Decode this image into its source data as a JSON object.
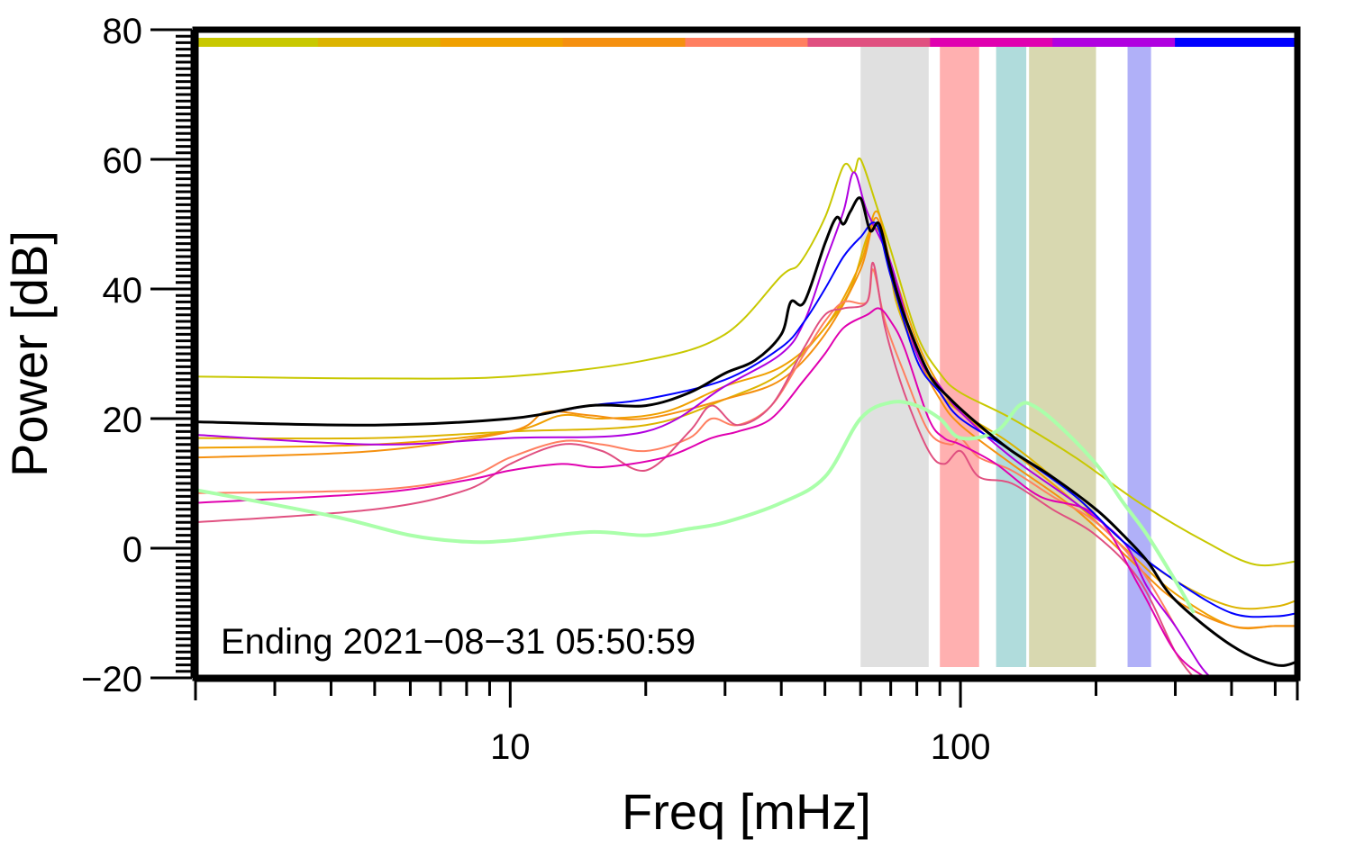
{
  "chart_data": {
    "type": "line",
    "title": "",
    "xlabel": "Freq [mHz]",
    "ylabel": "Power [dB]",
    "xscale": "log",
    "xlim": [
      2,
      560
    ],
    "ylim": [
      -20,
      80
    ],
    "grid": false,
    "x_major_ticks": [
      10,
      100
    ],
    "x_tick_labels": [
      "10",
      "100"
    ],
    "x_minor_ticks": [
      2,
      3,
      4,
      5,
      6,
      7,
      8,
      9,
      20,
      30,
      40,
      50,
      60,
      70,
      80,
      90,
      200,
      300,
      400,
      500
    ],
    "y_ticks": [
      -20,
      0,
      20,
      40,
      60,
      80
    ],
    "y_tick_labels": [
      "−20",
      "0",
      "20",
      "40",
      "60",
      "80"
    ],
    "annotation": "Ending 2021−08−31 05:50:59",
    "top_color_bar": [
      "#c8c800",
      "#dcb400",
      "#f0a000",
      "#f5900f",
      "#ff7f60",
      "#e05080",
      "#e000b0",
      "#b000e0",
      "#0000ff"
    ],
    "bands": [
      {
        "x0": 60,
        "x1": 85,
        "color": "#e0e0e0"
      },
      {
        "x0": 90,
        "x1": 110,
        "color": "#ffb0b0"
      },
      {
        "x0": 120,
        "x1": 140,
        "color": "#b0dcdc"
      },
      {
        "x0": 142,
        "x1": 200,
        "color": "#d8d8b0"
      },
      {
        "x0": 235,
        "x1": 265,
        "color": "#b0b0f8"
      }
    ],
    "series": [
      {
        "color": "#c8c800",
        "width": 2,
        "points": [
          [
            2,
            26.5
          ],
          [
            5,
            26.2
          ],
          [
            10,
            26.5
          ],
          [
            20,
            29
          ],
          [
            30,
            33
          ],
          [
            40,
            42
          ],
          [
            44,
            44
          ],
          [
            50,
            51
          ],
          [
            55,
            59
          ],
          [
            58,
            58
          ],
          [
            60,
            60
          ],
          [
            65,
            53
          ],
          [
            70,
            46
          ],
          [
            80,
            33
          ],
          [
            90,
            27
          ],
          [
            100,
            24
          ],
          [
            130,
            20
          ],
          [
            180,
            14
          ],
          [
            250,
            7
          ],
          [
            350,
            1
          ],
          [
            450,
            -2.5
          ],
          [
            560,
            -2
          ]
        ]
      },
      {
        "color": "#dcb400",
        "width": 2,
        "points": [
          [
            2,
            17
          ],
          [
            5,
            17
          ],
          [
            10,
            18
          ],
          [
            20,
            19
          ],
          [
            30,
            23
          ],
          [
            40,
            27
          ],
          [
            50,
            34
          ],
          [
            57,
            40
          ],
          [
            63,
            49
          ],
          [
            68,
            47
          ],
          [
            72,
            38
          ],
          [
            80,
            30
          ],
          [
            90,
            24
          ],
          [
            100,
            21
          ],
          [
            130,
            16
          ],
          [
            180,
            8
          ],
          [
            230,
            1
          ],
          [
            300,
            -5
          ],
          [
            400,
            -9
          ],
          [
            500,
            -9
          ],
          [
            560,
            -8
          ]
        ]
      },
      {
        "color": "#f0a000",
        "width": 2,
        "points": [
          [
            2,
            15.5
          ],
          [
            5,
            16
          ],
          [
            10,
            18
          ],
          [
            13,
            20.5
          ],
          [
            16,
            20
          ],
          [
            22,
            21
          ],
          [
            30,
            25
          ],
          [
            40,
            28
          ],
          [
            50,
            34
          ],
          [
            60,
            44
          ],
          [
            65,
            52
          ],
          [
            70,
            44
          ],
          [
            80,
            32
          ],
          [
            90,
            25
          ],
          [
            100,
            21
          ],
          [
            130,
            15
          ],
          [
            180,
            7
          ],
          [
            240,
            -1
          ],
          [
            300,
            -7
          ],
          [
            400,
            -12
          ],
          [
            500,
            -12
          ],
          [
            560,
            -12
          ]
        ]
      },
      {
        "color": "#f5900f",
        "width": 2,
        "points": [
          [
            2,
            14
          ],
          [
            5,
            15
          ],
          [
            10,
            18
          ],
          [
            12,
            21
          ],
          [
            15,
            20.5
          ],
          [
            20,
            20
          ],
          [
            30,
            23
          ],
          [
            40,
            26
          ],
          [
            50,
            33
          ],
          [
            60,
            43
          ],
          [
            65,
            51
          ],
          [
            70,
            42
          ],
          [
            80,
            30
          ],
          [
            90,
            23
          ],
          [
            100,
            19
          ],
          [
            130,
            13
          ],
          [
            180,
            6
          ],
          [
            240,
            -2
          ],
          [
            300,
            -8
          ],
          [
            400,
            -12
          ],
          [
            500,
            -12
          ],
          [
            560,
            -12
          ]
        ]
      },
      {
        "color": "#ff7f60",
        "width": 2,
        "points": [
          [
            2,
            8.5
          ],
          [
            5,
            9
          ],
          [
            8,
            11
          ],
          [
            10,
            14
          ],
          [
            13,
            16.5
          ],
          [
            16,
            16
          ],
          [
            20,
            15
          ],
          [
            25,
            17
          ],
          [
            28,
            20
          ],
          [
            32,
            19
          ],
          [
            38,
            22
          ],
          [
            45,
            30
          ],
          [
            50,
            35
          ],
          [
            55,
            38
          ],
          [
            62,
            38
          ],
          [
            64,
            43
          ],
          [
            68,
            35
          ],
          [
            75,
            27
          ],
          [
            85,
            18
          ],
          [
            95,
            16
          ],
          [
            100,
            17
          ],
          [
            110,
            14
          ],
          [
            130,
            12
          ],
          [
            160,
            8
          ],
          [
            200,
            4
          ],
          [
            250,
            -3
          ],
          [
            300,
            -12
          ]
        ]
      },
      {
        "color": "#e05080",
        "width": 2,
        "points": [
          [
            2,
            4
          ],
          [
            5,
            6
          ],
          [
            8,
            9
          ],
          [
            10,
            13
          ],
          [
            13,
            16
          ],
          [
            16,
            15
          ],
          [
            20,
            12
          ],
          [
            25,
            18
          ],
          [
            28,
            22
          ],
          [
            32,
            19
          ],
          [
            38,
            22
          ],
          [
            45,
            31
          ],
          [
            50,
            36
          ],
          [
            55,
            37
          ],
          [
            62,
            38
          ],
          [
            64,
            44
          ],
          [
            68,
            34
          ],
          [
            75,
            24
          ],
          [
            85,
            15
          ],
          [
            92,
            13
          ],
          [
            100,
            15
          ],
          [
            110,
            11
          ],
          [
            130,
            10
          ],
          [
            160,
            6
          ],
          [
            200,
            2
          ],
          [
            250,
            -5
          ],
          [
            300,
            -16
          ],
          [
            330,
            -20
          ]
        ]
      },
      {
        "color": "#e000b0",
        "width": 2,
        "points": [
          [
            2,
            7
          ],
          [
            5,
            8.5
          ],
          [
            8,
            10.5
          ],
          [
            10,
            12
          ],
          [
            13,
            13
          ],
          [
            16,
            12.5
          ],
          [
            22,
            14
          ],
          [
            28,
            17
          ],
          [
            32,
            18
          ],
          [
            38,
            20
          ],
          [
            45,
            26
          ],
          [
            50,
            30
          ],
          [
            55,
            34
          ],
          [
            62,
            36
          ],
          [
            66,
            37
          ],
          [
            70,
            35
          ],
          [
            75,
            31
          ],
          [
            85,
            20
          ],
          [
            92,
            17
          ],
          [
            100,
            16
          ],
          [
            120,
            13
          ],
          [
            150,
            8
          ],
          [
            200,
            5
          ],
          [
            250,
            -6
          ],
          [
            300,
            -16
          ],
          [
            350,
            -20
          ]
        ]
      },
      {
        "color": "#b000e0",
        "width": 2,
        "points": [
          [
            2,
            17.5
          ],
          [
            5,
            16
          ],
          [
            10,
            17
          ],
          [
            20,
            18
          ],
          [
            30,
            25
          ],
          [
            40,
            30
          ],
          [
            45,
            35
          ],
          [
            50,
            44
          ],
          [
            55,
            52
          ],
          [
            58,
            58
          ],
          [
            62,
            52
          ],
          [
            70,
            44
          ],
          [
            80,
            30
          ],
          [
            90,
            25
          ],
          [
            100,
            21
          ],
          [
            130,
            14
          ],
          [
            180,
            7
          ],
          [
            230,
            1
          ],
          [
            260,
            -6
          ],
          [
            300,
            -12
          ],
          [
            340,
            -18
          ],
          [
            360,
            -20
          ]
        ]
      },
      {
        "color": "#0000ff",
        "width": 2,
        "points": [
          [
            2,
            19.5
          ],
          [
            5,
            19
          ],
          [
            10,
            20
          ],
          [
            15,
            22
          ],
          [
            20,
            23
          ],
          [
            30,
            26
          ],
          [
            40,
            31
          ],
          [
            45,
            35
          ],
          [
            50,
            40
          ],
          [
            55,
            45
          ],
          [
            60,
            48
          ],
          [
            65,
            50
          ],
          [
            70,
            42
          ],
          [
            80,
            29
          ],
          [
            90,
            24
          ],
          [
            100,
            20
          ],
          [
            130,
            15
          ],
          [
            180,
            8
          ],
          [
            230,
            1
          ],
          [
            300,
            -5
          ],
          [
            400,
            -10
          ],
          [
            500,
            -10.5
          ],
          [
            560,
            -10
          ]
        ]
      },
      {
        "color": "#aaffaa",
        "width": 4,
        "points": [
          [
            2,
            9
          ],
          [
            4,
            5
          ],
          [
            6,
            2
          ],
          [
            8,
            1
          ],
          [
            10,
            1.2
          ],
          [
            15,
            2.5
          ],
          [
            20,
            2
          ],
          [
            25,
            3
          ],
          [
            30,
            4
          ],
          [
            40,
            7
          ],
          [
            50,
            11
          ],
          [
            60,
            20
          ],
          [
            70,
            22.5
          ],
          [
            80,
            22
          ],
          [
            90,
            20
          ],
          [
            100,
            17
          ],
          [
            120,
            18
          ],
          [
            135,
            22
          ],
          [
            145,
            22
          ],
          [
            165,
            19
          ],
          [
            200,
            13
          ],
          [
            230,
            7
          ],
          [
            260,
            2
          ],
          [
            300,
            -5
          ],
          [
            330,
            -10
          ]
        ]
      },
      {
        "color": "#000000",
        "width": 3,
        "points": [
          [
            2,
            19.5
          ],
          [
            5,
            19
          ],
          [
            10,
            20
          ],
          [
            15,
            22
          ],
          [
            20,
            22
          ],
          [
            25,
            24
          ],
          [
            30,
            27
          ],
          [
            35,
            29
          ],
          [
            40,
            33
          ],
          [
            42,
            38
          ],
          [
            45,
            38
          ],
          [
            50,
            47
          ],
          [
            53,
            51
          ],
          [
            55,
            50
          ],
          [
            57,
            52
          ],
          [
            60,
            54
          ],
          [
            63,
            49
          ],
          [
            66,
            50
          ],
          [
            70,
            43
          ],
          [
            75,
            36
          ],
          [
            85,
            27
          ],
          [
            95,
            23
          ],
          [
            110,
            19
          ],
          [
            130,
            15
          ],
          [
            160,
            11
          ],
          [
            200,
            6
          ],
          [
            230,
            2
          ],
          [
            260,
            -2
          ],
          [
            300,
            -8
          ],
          [
            400,
            -15
          ],
          [
            500,
            -18
          ],
          [
            560,
            -17.5
          ]
        ]
      }
    ]
  }
}
